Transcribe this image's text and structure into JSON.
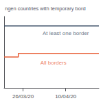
{
  "chart_data": {
    "type": "line",
    "title": "ngen countries with temporary bord",
    "series": [
      {
        "name": "At least one border",
        "color": "#3d5068",
        "x": [
          0,
          10
        ],
        "values": [
          26,
          26
        ]
      },
      {
        "name": "All borders",
        "color": "#e8603a",
        "x": [
          0,
          1.5,
          1.5,
          10
        ],
        "values": [
          13,
          13,
          14.5,
          14.5
        ]
      }
    ],
    "annotations": [
      {
        "text": "At least one border",
        "x": 6.5,
        "y": 23.0,
        "color": "#3d5068"
      },
      {
        "text": "All borders",
        "x": 5.2,
        "y": 10.5,
        "color": "#e8603a"
      }
    ],
    "xlim": [
      0,
      10
    ],
    "xticks": [
      {
        "value": 2.0,
        "label": "26/03/20"
      },
      {
        "value": 6.5,
        "label": "10/04/20"
      }
    ],
    "ylim": [
      0,
      30
    ],
    "yticks": [],
    "grid": false,
    "tick_labels": "x"
  }
}
